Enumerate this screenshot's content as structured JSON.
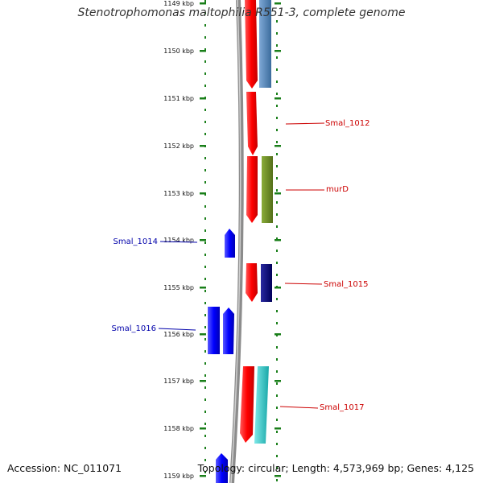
{
  "title": "Stenotrophomonas maltophilia R551-3, complete genome",
  "accession": "Accession: NC_011071",
  "topology": "Topology: circular; Length: 4,573,969 bp; Genes: 4,125",
  "scale_labels": [
    "1149 kbp",
    "1150 kbp",
    "1151 kbp",
    "1152 kbp",
    "1153 kbp",
    "1154 kbp",
    "1155 kbp",
    "1156 kbp",
    "1157 kbp",
    "1158 kbp",
    "1159 kbp"
  ],
  "gene_labels": [
    {
      "name": "Smal_1012",
      "side": "right",
      "color": "#cc0000"
    },
    {
      "name": "murD",
      "side": "right",
      "color": "#cc0000"
    },
    {
      "name": "Smal_1014",
      "side": "left",
      "color": "#0000aa"
    },
    {
      "name": "Smal_1015",
      "side": "right",
      "color": "#cc0000"
    },
    {
      "name": "Smal_1016",
      "side": "left",
      "color": "#0000aa"
    },
    {
      "name": "Smal_1017",
      "side": "right",
      "color": "#cc0000"
    }
  ],
  "colors": {
    "tick": "#1a7f1a",
    "backbone": "#8c8c8c",
    "forward_gene": "#ff0000",
    "reverse_gene": "#0000ff",
    "steelblue_feature": "#4a7fb5",
    "olive_feature": "#6b8e23",
    "navy_feature": "#000080",
    "cyan_feature": "#2ec8c8"
  }
}
